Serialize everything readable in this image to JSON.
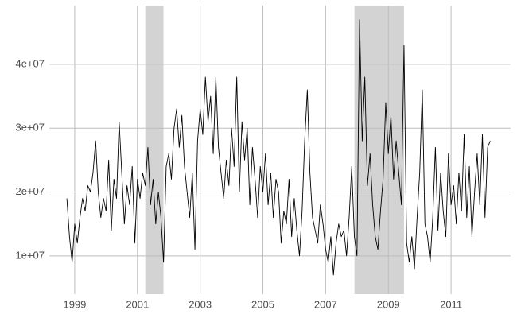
{
  "chart_data": {
    "type": "line",
    "x": [
      1998.75,
      1998.833,
      1998.917,
      1999.0,
      1999.083,
      1999.167,
      1999.25,
      1999.333,
      1999.417,
      1999.5,
      1999.583,
      1999.667,
      1999.75,
      1999.833,
      1999.917,
      2000.0,
      2000.083,
      2000.167,
      2000.25,
      2000.333,
      2000.417,
      2000.5,
      2000.583,
      2000.667,
      2000.75,
      2000.833,
      2000.917,
      2001.0,
      2001.083,
      2001.167,
      2001.25,
      2001.333,
      2001.417,
      2001.5,
      2001.583,
      2001.667,
      2001.75,
      2001.833,
      2001.917,
      2002.0,
      2002.083,
      2002.167,
      2002.25,
      2002.333,
      2002.417,
      2002.5,
      2002.583,
      2002.667,
      2002.75,
      2002.833,
      2002.917,
      2003.0,
      2003.083,
      2003.167,
      2003.25,
      2003.333,
      2003.417,
      2003.5,
      2003.583,
      2003.667,
      2003.75,
      2003.833,
      2003.917,
      2004.0,
      2004.083,
      2004.167,
      2004.25,
      2004.333,
      2004.417,
      2004.5,
      2004.583,
      2004.667,
      2004.75,
      2004.833,
      2004.917,
      2005.0,
      2005.083,
      2005.167,
      2005.25,
      2005.333,
      2005.417,
      2005.5,
      2005.583,
      2005.667,
      2005.75,
      2005.833,
      2005.917,
      2006.0,
      2006.083,
      2006.167,
      2006.25,
      2006.333,
      2006.417,
      2006.5,
      2006.583,
      2006.667,
      2006.75,
      2006.833,
      2006.917,
      2007.0,
      2007.083,
      2007.167,
      2007.25,
      2007.333,
      2007.417,
      2007.5,
      2007.583,
      2007.667,
      2007.75,
      2007.833,
      2007.917,
      2008.0,
      2008.083,
      2008.167,
      2008.25,
      2008.333,
      2008.417,
      2008.5,
      2008.583,
      2008.667,
      2008.75,
      2008.833,
      2008.917,
      2009.0,
      2009.083,
      2009.167,
      2009.25,
      2009.333,
      2009.417,
      2009.5,
      2009.583,
      2009.667,
      2009.75,
      2009.833,
      2009.917,
      2010.0,
      2010.083,
      2010.167,
      2010.25,
      2010.333,
      2010.417,
      2010.5,
      2010.583,
      2010.667,
      2010.75,
      2010.833,
      2010.917,
      2011.0,
      2011.083,
      2011.167,
      2011.25,
      2011.333,
      2011.417,
      2011.5,
      2011.583,
      2011.667,
      2011.75,
      2011.833,
      2011.917,
      2012.0,
      2012.083,
      2012.167,
      2012.25
    ],
    "values": [
      19000000.0,
      13000000.0,
      9000000.0,
      15000000.0,
      12000000.0,
      16000000.0,
      19000000.0,
      17000000.0,
      21000000.0,
      20000000.0,
      23000000.0,
      28000000.0,
      20000000.0,
      16000000.0,
      19000000.0,
      17000000.0,
      25000000.0,
      14000000.0,
      22000000.0,
      19000000.0,
      31000000.0,
      23000000.0,
      15000000.0,
      21000000.0,
      18000000.0,
      24000000.0,
      12000000.0,
      22000000.0,
      19000000.0,
      23000000.0,
      21000000.0,
      27000000.0,
      18000000.0,
      22000000.0,
      15000000.0,
      20000000.0,
      16000000.0,
      9000000.0,
      24000000.0,
      26000000.0,
      22000000.0,
      30000000.0,
      33000000.0,
      27000000.0,
      32000000.0,
      24000000.0,
      20000000.0,
      16000000.0,
      23000000.0,
      11000000.0,
      28000000.0,
      33000000.0,
      29000000.0,
      38000000.0,
      31000000.0,
      35000000.0,
      26000000.0,
      38000000.0,
      27000000.0,
      23000000.0,
      19000000.0,
      25000000.0,
      21000000.0,
      30000000.0,
      24000000.0,
      38000000.0,
      20000000.0,
      31000000.0,
      25000000.0,
      30000000.0,
      18000000.0,
      27000000.0,
      22000000.0,
      16000000.0,
      24000000.0,
      20000000.0,
      26000000.0,
      18000000.0,
      23000000.0,
      16000000.0,
      22000000.0,
      20000000.0,
      12000000.0,
      17000000.0,
      15000000.0,
      22000000.0,
      13000000.0,
      19000000.0,
      14000000.0,
      10000000.0,
      17000000.0,
      28000000.0,
      36000000.0,
      23000000.0,
      16000000.0,
      14000000.0,
      12000000.0,
      18000000.0,
      15000000.0,
      11000000.0,
      9000000.0,
      13000000.0,
      7000000.0,
      12000000.0,
      15000000.0,
      13000000.0,
      14000000.0,
      10000000.0,
      16000000.0,
      24000000.0,
      13000000.0,
      10000000.0,
      47000000.0,
      28000000.0,
      38000000.0,
      21000000.0,
      26000000.0,
      18000000.0,
      13000000.0,
      11000000.0,
      17000000.0,
      22000000.0,
      34000000.0,
      26000000.0,
      32000000.0,
      22000000.0,
      28000000.0,
      23000000.0,
      18000000.0,
      43000000.0,
      12000000.0,
      9000000.0,
      13000000.0,
      8000000.0,
      16000000.0,
      23000000.0,
      36000000.0,
      15000000.0,
      13000000.0,
      9000000.0,
      16000000.0,
      27000000.0,
      14000000.0,
      23000000.0,
      17000000.0,
      13000000.0,
      26000000.0,
      18000000.0,
      21000000.0,
      15000000.0,
      23000000.0,
      17000000.0,
      29000000.0,
      16000000.0,
      24000000.0,
      13000000.0,
      20000000.0,
      26000000.0,
      18000000.0,
      29000000.0,
      16000000.0,
      27000000.0,
      28000000.0
    ],
    "color": "#000000",
    "shaded_regions": [
      [
        2001.25,
        2001.83
      ],
      [
        2007.92,
        2009.5
      ]
    ],
    "shade_color": "#d3d3d3",
    "xlim": [
      1998.19,
      2012.9
    ],
    "xticks": [
      1999,
      2001,
      2003,
      2005,
      2007,
      2009,
      2011
    ],
    "ylim": [
      4000000,
      49200000
    ],
    "yticks": [
      {
        "value": 10000000,
        "label": "1e+07"
      },
      {
        "value": 20000000,
        "label": "2e+07"
      },
      {
        "value": 30000000,
        "label": "3e+07"
      },
      {
        "value": 40000000,
        "label": "4e+07"
      }
    ],
    "grid": true
  }
}
